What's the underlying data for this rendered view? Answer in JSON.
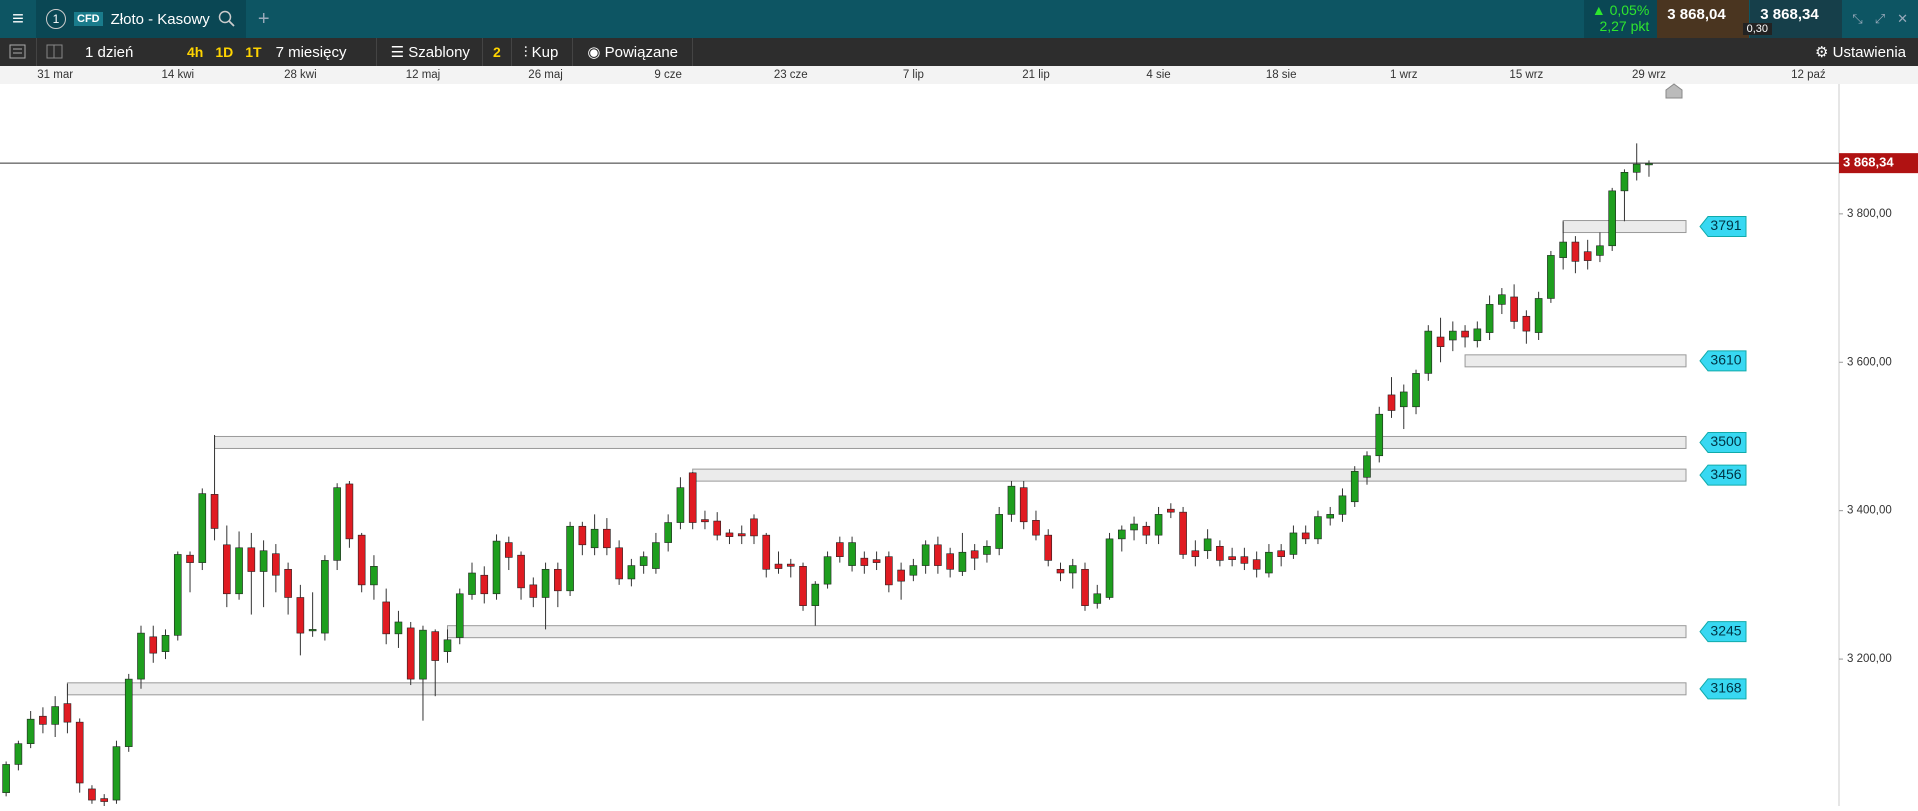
{
  "header": {
    "tab_number": "1",
    "badge": "CFD",
    "instrument": "Złoto - Kasowy",
    "change_pct": "0,05%",
    "change_pts": "2,27 pkt",
    "sell": "3 868,04",
    "buy": "3 868,34",
    "spread": "0,30"
  },
  "toolbar": {
    "interval": "1 dzień",
    "quick": [
      "4h",
      "1D",
      "1T"
    ],
    "range": "7 miesięcy",
    "templates": "Szablony",
    "templates_count": "2",
    "buy": "Kup",
    "related": "Powiązane",
    "settings": "Ustawienia"
  },
  "chart_data": {
    "type": "candlestick",
    "up_color": "#1e9e1e",
    "down_color": "#e01b22",
    "xlim": [
      -0.5,
      149.5
    ],
    "ylim": [
      3002,
      3975
    ],
    "xticks": [
      {
        "value": 4,
        "label": "31 mar"
      },
      {
        "value": 14,
        "label": "14 kwi"
      },
      {
        "value": 24,
        "label": "28 kwi"
      },
      {
        "value": 34,
        "label": "12 maj"
      },
      {
        "value": 44,
        "label": "26 maj"
      },
      {
        "value": 54,
        "label": "9 cze"
      },
      {
        "value": 64,
        "label": "23 cze"
      },
      {
        "value": 74,
        "label": "7 lip"
      },
      {
        "value": 84,
        "label": "21 lip"
      },
      {
        "value": 94,
        "label": "4 sie"
      },
      {
        "value": 104,
        "label": "18 sie"
      },
      {
        "value": 114,
        "label": "1 wrz"
      },
      {
        "value": 124,
        "label": "15 wrz"
      },
      {
        "value": 134,
        "label": "29 wrz"
      },
      {
        "value": 147,
        "label": "12 paź"
      }
    ],
    "yticks": [
      {
        "value": 3800,
        "label": "3 800,00"
      },
      {
        "value": 3600,
        "label": "3 600,00"
      },
      {
        "value": 3400,
        "label": "3 400,00"
      },
      {
        "value": 3200,
        "label": "3 200,00"
      }
    ],
    "last_price": {
      "value": 3868.34,
      "label": "3 868,34"
    },
    "levels": [
      {
        "value": 3791,
        "from": 127
      },
      {
        "value": 3610,
        "from": 119
      },
      {
        "value": 3500,
        "from": 17
      },
      {
        "value": 3456,
        "from": 56
      },
      {
        "value": 3245,
        "from": 36
      },
      {
        "value": 3168,
        "from": 5
      }
    ],
    "ohlc": [
      [
        3020,
        3062,
        3015,
        3058
      ],
      [
        3058,
        3090,
        3050,
        3086
      ],
      [
        3086,
        3130,
        3080,
        3119
      ],
      [
        3123,
        3135,
        3100,
        3112
      ],
      [
        3112,
        3150,
        3095,
        3136
      ],
      [
        3140,
        3167,
        3100,
        3115
      ],
      [
        3115,
        3120,
        3020,
        3033
      ],
      [
        3025,
        3030,
        3005,
        3010
      ],
      [
        3012,
        3018,
        3000,
        3008
      ],
      [
        3010,
        3090,
        3005,
        3082
      ],
      [
        3082,
        3180,
        3075,
        3173
      ],
      [
        3173,
        3245,
        3160,
        3235
      ],
      [
        3230,
        3245,
        3195,
        3208
      ],
      [
        3210,
        3240,
        3200,
        3232
      ],
      [
        3232,
        3345,
        3225,
        3341
      ],
      [
        3340,
        3345,
        3290,
        3330
      ],
      [
        3330,
        3430,
        3320,
        3423
      ],
      [
        3422,
        3502,
        3360,
        3376
      ],
      [
        3354,
        3380,
        3270,
        3288
      ],
      [
        3288,
        3372,
        3280,
        3350
      ],
      [
        3350,
        3370,
        3260,
        3318
      ],
      [
        3318,
        3360,
        3270,
        3346
      ],
      [
        3342,
        3355,
        3290,
        3313
      ],
      [
        3321,
        3330,
        3260,
        3283
      ],
      [
        3283,
        3300,
        3205,
        3235
      ],
      [
        3238,
        3290,
        3230,
        3240
      ],
      [
        3235,
        3340,
        3225,
        3333
      ],
      [
        3333,
        3437,
        3320,
        3431
      ],
      [
        3436,
        3440,
        3350,
        3362
      ],
      [
        3367,
        3370,
        3290,
        3300
      ],
      [
        3300,
        3340,
        3280,
        3325
      ],
      [
        3277,
        3295,
        3220,
        3234
      ],
      [
        3234,
        3265,
        3215,
        3250
      ],
      [
        3242,
        3250,
        3165,
        3173
      ],
      [
        3173,
        3245,
        3117,
        3239
      ],
      [
        3237,
        3240,
        3150,
        3198
      ],
      [
        3210,
        3240,
        3195,
        3226
      ],
      [
        3229,
        3295,
        3220,
        3288
      ],
      [
        3287,
        3330,
        3280,
        3316
      ],
      [
        3313,
        3325,
        3275,
        3288
      ],
      [
        3288,
        3368,
        3280,
        3359
      ],
      [
        3357,
        3365,
        3320,
        3337
      ],
      [
        3340,
        3345,
        3280,
        3296
      ],
      [
        3300,
        3310,
        3270,
        3283
      ],
      [
        3283,
        3330,
        3240,
        3321
      ],
      [
        3321,
        3330,
        3270,
        3292
      ],
      [
        3292,
        3385,
        3285,
        3379
      ],
      [
        3379,
        3385,
        3340,
        3354
      ],
      [
        3350,
        3395,
        3340,
        3375
      ],
      [
        3375,
        3390,
        3340,
        3350
      ],
      [
        3350,
        3360,
        3300,
        3308
      ],
      [
        3308,
        3335,
        3298,
        3326
      ],
      [
        3326,
        3345,
        3315,
        3338
      ],
      [
        3322,
        3370,
        3315,
        3357
      ],
      [
        3357,
        3395,
        3345,
        3384
      ],
      [
        3384,
        3445,
        3375,
        3431
      ],
      [
        3451,
        3452,
        3375,
        3384
      ],
      [
        3388,
        3400,
        3375,
        3385
      ],
      [
        3386,
        3398,
        3360,
        3367
      ],
      [
        3370,
        3375,
        3355,
        3365
      ],
      [
        3369,
        3380,
        3355,
        3366
      ],
      [
        3389,
        3395,
        3355,
        3366
      ],
      [
        3367,
        3370,
        3310,
        3321
      ],
      [
        3328,
        3345,
        3315,
        3322
      ],
      [
        3328,
        3335,
        3310,
        3325
      ],
      [
        3325,
        3330,
        3265,
        3272
      ],
      [
        3272,
        3305,
        3245,
        3301
      ],
      [
        3301,
        3345,
        3295,
        3338
      ],
      [
        3357,
        3365,
        3330,
        3338
      ],
      [
        3326,
        3365,
        3318,
        3357
      ],
      [
        3336,
        3345,
        3315,
        3326
      ],
      [
        3334,
        3345,
        3320,
        3330
      ],
      [
        3338,
        3345,
        3290,
        3300
      ],
      [
        3320,
        3330,
        3280,
        3305
      ],
      [
        3313,
        3335,
        3305,
        3326
      ],
      [
        3326,
        3360,
        3315,
        3354
      ],
      [
        3354,
        3365,
        3315,
        3326
      ],
      [
        3342,
        3350,
        3310,
        3321
      ],
      [
        3318,
        3370,
        3312,
        3344
      ],
      [
        3346,
        3355,
        3320,
        3336
      ],
      [
        3341,
        3360,
        3330,
        3352
      ],
      [
        3349,
        3405,
        3340,
        3395
      ],
      [
        3395,
        3440,
        3385,
        3433
      ],
      [
        3431,
        3440,
        3375,
        3385
      ],
      [
        3387,
        3400,
        3360,
        3367
      ],
      [
        3367,
        3375,
        3325,
        3333
      ],
      [
        3321,
        3330,
        3305,
        3316
      ],
      [
        3316,
        3335,
        3295,
        3326
      ],
      [
        3321,
        3330,
        3265,
        3272
      ],
      [
        3275,
        3300,
        3268,
        3288
      ],
      [
        3283,
        3370,
        3280,
        3362
      ],
      [
        3362,
        3380,
        3345,
        3374
      ],
      [
        3374,
        3392,
        3360,
        3382
      ],
      [
        3379,
        3385,
        3355,
        3367
      ],
      [
        3367,
        3405,
        3355,
        3395
      ],
      [
        3402,
        3410,
        3390,
        3398
      ],
      [
        3398,
        3405,
        3335,
        3341
      ],
      [
        3346,
        3360,
        3325,
        3338
      ],
      [
        3346,
        3375,
        3335,
        3362
      ],
      [
        3352,
        3360,
        3325,
        3333
      ],
      [
        3338,
        3350,
        3325,
        3334
      ],
      [
        3338,
        3350,
        3320,
        3329
      ],
      [
        3334,
        3345,
        3310,
        3321
      ],
      [
        3316,
        3355,
        3310,
        3344
      ],
      [
        3346,
        3355,
        3325,
        3338
      ],
      [
        3341,
        3380,
        3335,
        3370
      ],
      [
        3370,
        3380,
        3355,
        3362
      ],
      [
        3362,
        3400,
        3355,
        3392
      ],
      [
        3390,
        3405,
        3380,
        3395
      ],
      [
        3395,
        3430,
        3385,
        3420
      ],
      [
        3412,
        3460,
        3405,
        3453
      ],
      [
        3445,
        3480,
        3435,
        3474
      ],
      [
        3474,
        3540,
        3465,
        3530
      ],
      [
        3556,
        3580,
        3525,
        3535
      ],
      [
        3540,
        3570,
        3510,
        3560
      ],
      [
        3540,
        3590,
        3530,
        3585
      ],
      [
        3585,
        3650,
        3575,
        3642
      ],
      [
        3634,
        3660,
        3600,
        3621
      ],
      [
        3630,
        3655,
        3615,
        3642
      ],
      [
        3642,
        3650,
        3620,
        3634
      ],
      [
        3629,
        3655,
        3620,
        3645
      ],
      [
        3640,
        3690,
        3630,
        3678
      ],
      [
        3678,
        3700,
        3665,
        3691
      ],
      [
        3688,
        3705,
        3645,
        3655
      ],
      [
        3662,
        3670,
        3625,
        3642
      ],
      [
        3640,
        3695,
        3630,
        3686
      ],
      [
        3686,
        3750,
        3680,
        3744
      ],
      [
        3741,
        3790,
        3725,
        3762
      ],
      [
        3762,
        3770,
        3720,
        3736
      ],
      [
        3749,
        3765,
        3725,
        3737
      ],
      [
        3744,
        3775,
        3735,
        3757
      ],
      [
        3757,
        3835,
        3750,
        3831
      ],
      [
        3831,
        3860,
        3790,
        3856
      ],
      [
        3856,
        3895,
        3845,
        3867
      ],
      [
        3866,
        3872,
        3850,
        3868
      ]
    ]
  }
}
